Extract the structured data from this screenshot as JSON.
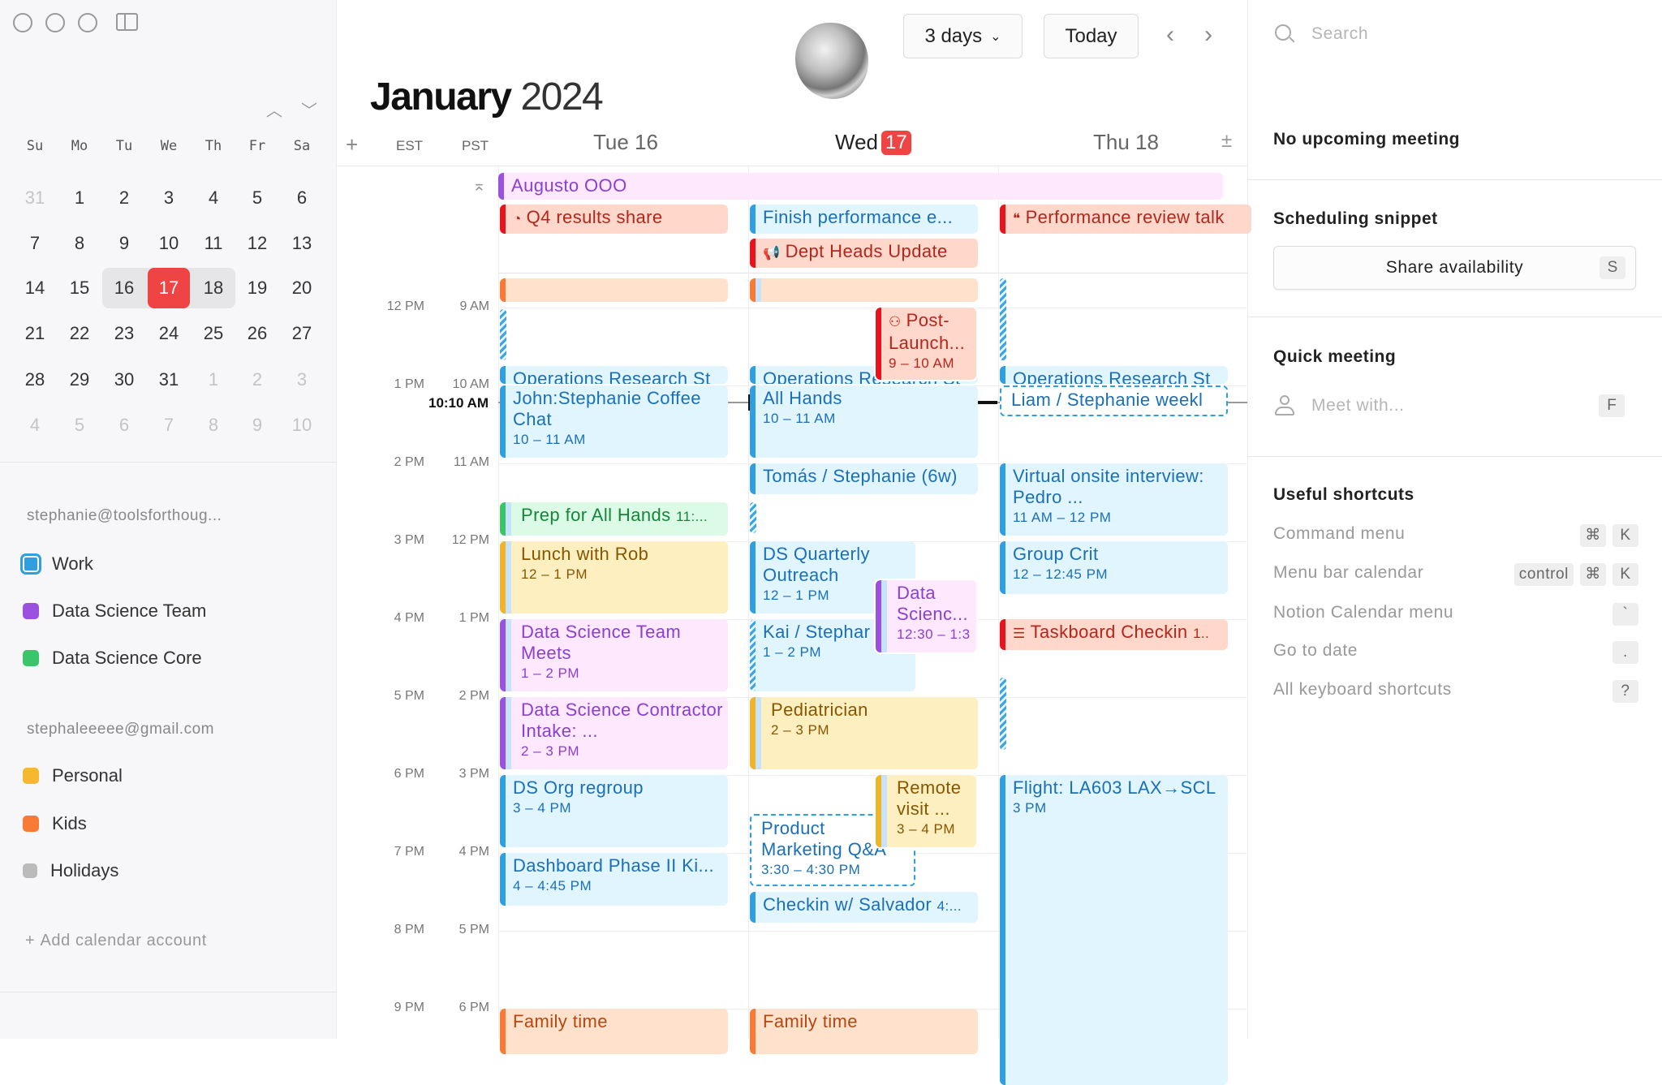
{
  "window": {
    "controls": [
      "close",
      "minimize",
      "zoom"
    ],
    "sidebar_toggle_icon": "sidebar-icon"
  },
  "mini_calendar": {
    "weekdays": [
      "Su",
      "Mo",
      "Tu",
      "We",
      "Th",
      "Fr",
      "Sa"
    ],
    "weeks": [
      [
        "31",
        "1",
        "2",
        "3",
        "4",
        "5",
        "6"
      ],
      [
        "7",
        "8",
        "9",
        "10",
        "11",
        "12",
        "13"
      ],
      [
        "14",
        "15",
        "16",
        "17",
        "18",
        "19",
        "20"
      ],
      [
        "21",
        "22",
        "23",
        "24",
        "25",
        "26",
        "27"
      ],
      [
        "28",
        "29",
        "30",
        "31",
        "1",
        "2",
        "3"
      ],
      [
        "4",
        "5",
        "6",
        "7",
        "8",
        "9",
        "10"
      ]
    ],
    "today": "17",
    "selected_range": [
      "16",
      "17",
      "18"
    ]
  },
  "accounts": [
    {
      "email": "stephanie@toolsforthoug...",
      "calendars": [
        {
          "name": "Work",
          "color": "#2f9fe0",
          "checked": true
        },
        {
          "name": "Data Science Team",
          "color": "#9b51e0"
        },
        {
          "name": "Data Science Core",
          "color": "#3cc46a"
        }
      ]
    },
    {
      "email": "stephaleeeee@gmail.com",
      "calendars": [
        {
          "name": "Personal",
          "color": "#f5b82e"
        },
        {
          "name": "Kids",
          "color": "#f97a35"
        },
        {
          "name": "Holidays",
          "color": "#aaaaaa",
          "icon": "rss-icon"
        }
      ]
    }
  ],
  "add_account": "Add calendar account",
  "header": {
    "month": "January",
    "year": "2024",
    "view": "3 days",
    "today": "Today",
    "tz": [
      "EST",
      "PST"
    ],
    "days": [
      {
        "label": "Tue 16"
      },
      {
        "name": "Wed",
        "num": "17"
      },
      {
        "label": "Thu 18"
      }
    ],
    "now": "10:10 AM"
  },
  "time_labels": {
    "est": [
      "12 PM",
      "1 PM",
      "2 PM",
      "3 PM",
      "4 PM",
      "5 PM",
      "6 PM",
      "7 PM",
      "8 PM",
      "9 PM"
    ],
    "pst": [
      "9 AM",
      "10 AM",
      "11 AM",
      "12 PM",
      "1 PM",
      "2 PM",
      "3 PM",
      "4 PM",
      "5 PM",
      "6 PM"
    ]
  },
  "all_day": [
    {
      "title": "Augusto OOO",
      "color": "purple"
    },
    {
      "title": "Q4 results share",
      "color": "red",
      "icon": "chart-icon"
    },
    {
      "title": "Finish performance e...",
      "color": "blue"
    },
    {
      "title": "Performance review talk",
      "color": "red",
      "icon": "chat-icon"
    },
    {
      "title": "Dept Heads Update",
      "color": "red",
      "icon": "megaphone-icon"
    }
  ],
  "events": [
    {
      "title": "",
      "color": "orange"
    },
    {
      "title": "",
      "style": "striped"
    },
    {
      "title": "Operations Research St",
      "color": "blue",
      "one": true
    },
    {
      "title": "John:Stephanie Coffee Chat",
      "time": "10 – 11 AM",
      "color": "blue"
    },
    {
      "title": "Prep for All Hands",
      "suffix": "11:...",
      "color": "green",
      "one": true,
      "bar2": true
    },
    {
      "title": "Lunch with Rob",
      "time": "12 – 1 PM",
      "color": "yellow",
      "bar2": true
    },
    {
      "title": "Data Science Team Meets",
      "time": "1 – 2 PM",
      "color": "purple",
      "bar2": true
    },
    {
      "title": "Data Science Contractor Intake: ...",
      "time": "2 – 3 PM",
      "color": "purple",
      "bar2": true
    },
    {
      "title": "DS Org regroup",
      "time": "3 – 4 PM",
      "color": "blue"
    },
    {
      "title": "Dashboard Phase II Ki...",
      "time": "4 – 4:45 PM",
      "color": "blue"
    },
    {
      "title": "Family time",
      "color": "orange"
    },
    {
      "title": "",
      "color": "orange",
      "bar2": true
    },
    {
      "title": "Post-Launch...",
      "time": "9 – 10 AM",
      "color": "red",
      "icon": "people-icon"
    },
    {
      "title": "Operations Research St",
      "color": "blue",
      "one": true
    },
    {
      "title": "All Hands",
      "time": "10 – 11 AM",
      "color": "blue"
    },
    {
      "title": "Tomás / Stephanie (6w)",
      "color": "blue",
      "one": true
    },
    {
      "title": "",
      "style": "striped"
    },
    {
      "title": "DS Quarterly Outreach",
      "time": "12 – 1 PM",
      "color": "blue"
    },
    {
      "title": "Data Scienc...",
      "time": "12:30 – 1:3",
      "color": "purple",
      "bar2": true
    },
    {
      "title": "Kai / Stephar",
      "time": "1 – 2 PM",
      "color": "blue",
      "striped_bar": true
    },
    {
      "title": "Pediatrician",
      "time": "2 – 3 PM",
      "color": "yellow",
      "bar2": true
    },
    {
      "title": "Product Marketing Q&A",
      "time": "3:30 – 4:30 PM",
      "color": "blue",
      "style": "dashed"
    },
    {
      "title": "Remote visit ...",
      "time": "3 – 4 PM",
      "color": "yellow",
      "bar2": true
    },
    {
      "title": "Checkin w/ Salvador",
      "suffix": "4:...",
      "color": "blue",
      "one": true
    },
    {
      "title": "Family time",
      "color": "orange"
    },
    {
      "title": "",
      "style": "striped"
    },
    {
      "title": "Operations Research St",
      "color": "blue",
      "one": true
    },
    {
      "title": "Liam / Stephanie weekl",
      "color": "blue",
      "style": "dashed",
      "one": true
    },
    {
      "title": "Virtual onsite interview: Pedro ...",
      "time": "11 AM – 12 PM",
      "color": "blue"
    },
    {
      "title": "Group Crit",
      "time": "12 – 12:45 PM",
      "color": "blue"
    },
    {
      "title": "Taskboard Checkin",
      "suffix": "1..",
      "color": "red",
      "icon": "checklist-icon",
      "one": true
    },
    {
      "title": "",
      "style": "striped"
    },
    {
      "title": "Flight: LA603 LAX→SCL",
      "time": "3 PM",
      "color": "blue"
    }
  ],
  "colors": {
    "blue": {
      "bg": "#e0f5fe",
      "bar": "#2f9fe0",
      "text": "#1b6fb5"
    },
    "red": {
      "bg": "#ffd8cb",
      "bar": "#e8131c",
      "text": "#b3261e"
    },
    "orange": {
      "bg": "#ffe1cc",
      "bar": "#f97a35",
      "text": "#b54710"
    },
    "yellow": {
      "bg": "#fdefc0",
      "bar": "#f0b429",
      "text": "#865600"
    },
    "purple": {
      "bg": "#fde8fd",
      "bar": "#9b51e0",
      "text": "#8a3fd1"
    },
    "green": {
      "bg": "#dcfbe6",
      "bar": "#3cc46a",
      "text": "#16843a"
    },
    "today": "#ef4444"
  },
  "right_panel": {
    "search_placeholder": "Search",
    "upcoming": "No upcoming meeting",
    "snippet_heading": "Scheduling snippet",
    "share_label": "Share availability",
    "share_key": "S",
    "quick_heading": "Quick meeting",
    "meet_placeholder": "Meet with...",
    "meet_key": "F",
    "shortcuts_heading": "Useful shortcuts",
    "shortcuts": [
      {
        "label": "Command menu",
        "keys": [
          "⌘",
          "K"
        ]
      },
      {
        "label": "Menu bar calendar",
        "keys": [
          "control",
          "⌘",
          "K"
        ]
      },
      {
        "label": "Notion Calendar menu",
        "keys": [
          "`"
        ]
      },
      {
        "label": "Go to date",
        "keys": [
          "."
        ]
      },
      {
        "label": "All keyboard shortcuts",
        "keys": [
          "?"
        ]
      }
    ]
  }
}
